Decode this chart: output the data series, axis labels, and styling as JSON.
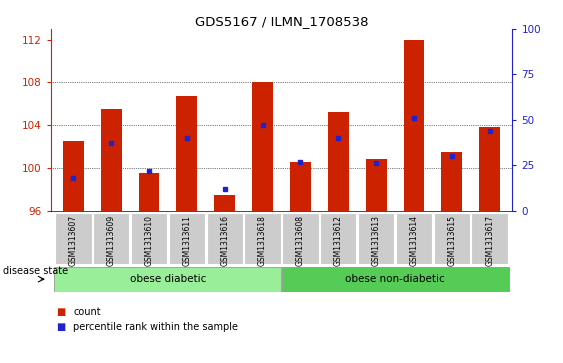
{
  "title": "GDS5167 / ILMN_1708538",
  "samples": [
    "GSM1313607",
    "GSM1313609",
    "GSM1313610",
    "GSM1313611",
    "GSM1313616",
    "GSM1313618",
    "GSM1313608",
    "GSM1313612",
    "GSM1313613",
    "GSM1313614",
    "GSM1313615",
    "GSM1313617"
  ],
  "counts": [
    102.5,
    105.5,
    99.5,
    106.7,
    97.5,
    108.0,
    100.5,
    105.2,
    100.8,
    112.0,
    101.5,
    103.8
  ],
  "percentiles": [
    18,
    37,
    22,
    40,
    12,
    47,
    27,
    40,
    26,
    51,
    30,
    44
  ],
  "ylim_left": [
    96,
    113
  ],
  "ylim_right": [
    0,
    100
  ],
  "yticks_left": [
    96,
    100,
    104,
    108,
    112
  ],
  "yticks_right": [
    0,
    25,
    50,
    75,
    100
  ],
  "bar_color": "#cc2200",
  "dot_color": "#2222cc",
  "group1_label": "obese diabetic",
  "group2_label": "obese non-diabetic",
  "group1_indices": [
    0,
    1,
    2,
    3,
    4,
    5
  ],
  "group2_indices": [
    6,
    7,
    8,
    9,
    10,
    11
  ],
  "group1_color": "#99ee99",
  "group2_color": "#55cc55",
  "tick_label_bg": "#cccccc",
  "disease_state_label": "disease state",
  "legend_count_label": "count",
  "legend_percentile_label": "percentile rank within the sample",
  "bar_width": 0.55,
  "base_value": 96
}
